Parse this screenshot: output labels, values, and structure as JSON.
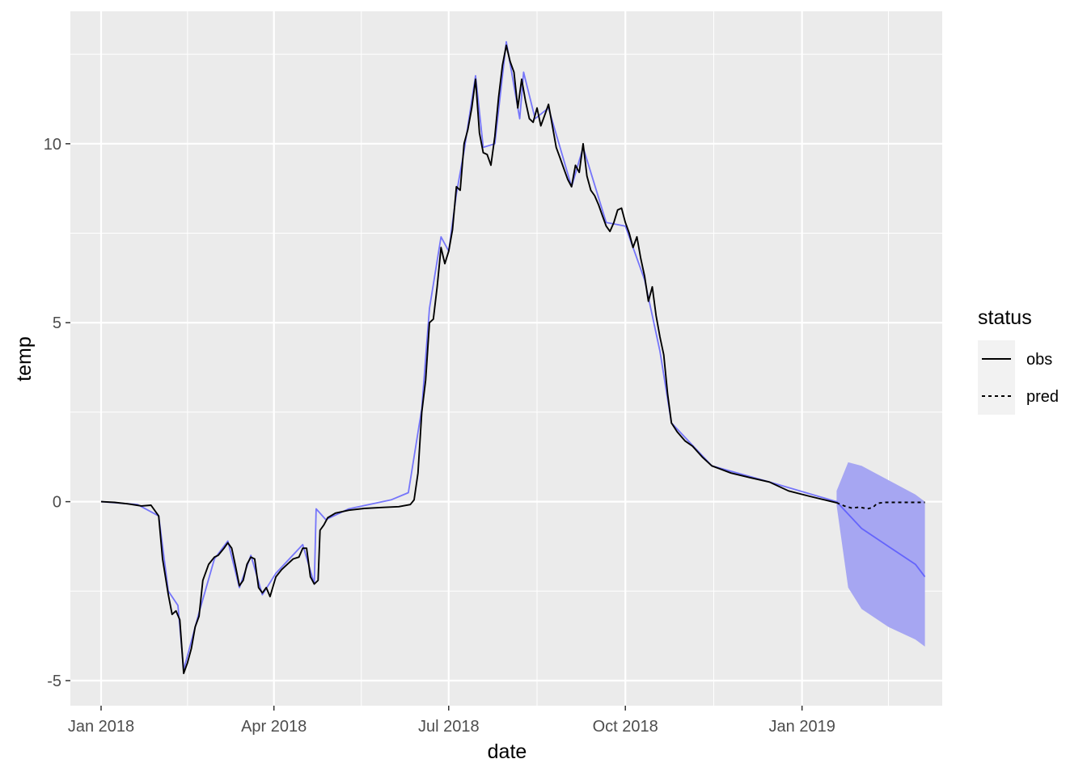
{
  "chart_data": {
    "type": "line",
    "xlabel": "date",
    "ylabel": "temp",
    "x_ticks": [
      {
        "date": "2018-01-01",
        "label": "Jan 2018"
      },
      {
        "date": "2018-04-01",
        "label": "Apr 2018"
      },
      {
        "date": "2018-07-01",
        "label": "Jul 2018"
      },
      {
        "date": "2018-10-01",
        "label": "Oct 2018"
      },
      {
        "date": "2019-01-01",
        "label": "Jan 2019"
      }
    ],
    "y_ticks": [
      -5,
      0,
      5,
      10
    ],
    "xlim": [
      "2017-12-16",
      "2019-03-15"
    ],
    "ylim": [
      -5.7,
      13.7
    ],
    "grid": true,
    "legend": {
      "title": "status",
      "position": "right",
      "items": [
        {
          "label": "obs",
          "linetype": "solid"
        },
        {
          "label": "pred",
          "linetype": "dotted"
        }
      ]
    },
    "colors": {
      "panel": "#ebebeb",
      "grid": "#ffffff",
      "line": "#000000",
      "fit": "#4d4dff",
      "band": "#a6a6f2"
    },
    "series": [
      {
        "name": "obs",
        "points": [
          [
            "2018-01-01",
            0.0
          ],
          [
            "2018-01-08",
            -0.02
          ],
          [
            "2018-01-15",
            -0.06
          ],
          [
            "2018-01-22",
            -0.12
          ],
          [
            "2018-01-27",
            -0.1
          ],
          [
            "2018-01-31",
            -0.4
          ],
          [
            "2018-02-02",
            -1.6
          ],
          [
            "2018-02-05",
            -2.6
          ],
          [
            "2018-02-07",
            -3.15
          ],
          [
            "2018-02-09",
            -3.05
          ],
          [
            "2018-02-11",
            -3.3
          ],
          [
            "2018-02-13",
            -4.8
          ],
          [
            "2018-02-15",
            -4.5
          ],
          [
            "2018-02-17",
            -4.1
          ],
          [
            "2018-02-19",
            -3.5
          ],
          [
            "2018-02-21",
            -3.2
          ],
          [
            "2018-02-23",
            -2.2
          ],
          [
            "2018-02-26",
            -1.75
          ],
          [
            "2018-03-01",
            -1.55
          ],
          [
            "2018-03-03",
            -1.5
          ],
          [
            "2018-03-06",
            -1.3
          ],
          [
            "2018-03-08",
            -1.15
          ],
          [
            "2018-03-10",
            -1.3
          ],
          [
            "2018-03-12",
            -1.8
          ],
          [
            "2018-03-14",
            -2.35
          ],
          [
            "2018-03-16",
            -2.2
          ],
          [
            "2018-03-18",
            -1.75
          ],
          [
            "2018-03-20",
            -1.55
          ],
          [
            "2018-03-22",
            -1.6
          ],
          [
            "2018-03-24",
            -2.4
          ],
          [
            "2018-03-26",
            -2.55
          ],
          [
            "2018-03-28",
            -2.4
          ],
          [
            "2018-03-30",
            -2.65
          ],
          [
            "2018-04-02",
            -2.1
          ],
          [
            "2018-04-05",
            -1.9
          ],
          [
            "2018-04-08",
            -1.75
          ],
          [
            "2018-04-11",
            -1.6
          ],
          [
            "2018-04-14",
            -1.55
          ],
          [
            "2018-04-16",
            -1.3
          ],
          [
            "2018-04-18",
            -1.3
          ],
          [
            "2018-04-20",
            -2.1
          ],
          [
            "2018-04-22",
            -2.3
          ],
          [
            "2018-04-24",
            -2.2
          ],
          [
            "2018-04-25",
            -0.8
          ],
          [
            "2018-04-27",
            -0.65
          ],
          [
            "2018-04-29",
            -0.45
          ],
          [
            "2018-05-03",
            -0.32
          ],
          [
            "2018-05-10",
            -0.24
          ],
          [
            "2018-05-18",
            -0.19
          ],
          [
            "2018-05-28",
            -0.16
          ],
          [
            "2018-06-05",
            -0.14
          ],
          [
            "2018-06-11",
            -0.08
          ],
          [
            "2018-06-13",
            0.05
          ],
          [
            "2018-06-15",
            0.8
          ],
          [
            "2018-06-17",
            2.5
          ],
          [
            "2018-06-19",
            3.4
          ],
          [
            "2018-06-21",
            5.0
          ],
          [
            "2018-06-23",
            5.1
          ],
          [
            "2018-06-25",
            6.0
          ],
          [
            "2018-06-27",
            7.1
          ],
          [
            "2018-06-29",
            6.65
          ],
          [
            "2018-07-01",
            7.0
          ],
          [
            "2018-07-03",
            7.6
          ],
          [
            "2018-07-05",
            8.8
          ],
          [
            "2018-07-07",
            8.7
          ],
          [
            "2018-07-09",
            10.0
          ],
          [
            "2018-07-11",
            10.4
          ],
          [
            "2018-07-13",
            11.0
          ],
          [
            "2018-07-15",
            11.8
          ],
          [
            "2018-07-17",
            10.3
          ],
          [
            "2018-07-19",
            9.75
          ],
          [
            "2018-07-21",
            9.7
          ],
          [
            "2018-07-23",
            9.4
          ],
          [
            "2018-07-25",
            10.2
          ],
          [
            "2018-07-27",
            11.3
          ],
          [
            "2018-07-29",
            12.2
          ],
          [
            "2018-07-31",
            12.75
          ],
          [
            "2018-08-02",
            12.3
          ],
          [
            "2018-08-04",
            12.0
          ],
          [
            "2018-08-06",
            11.0
          ],
          [
            "2018-08-08",
            11.8
          ],
          [
            "2018-08-10",
            11.2
          ],
          [
            "2018-08-12",
            10.7
          ],
          [
            "2018-08-14",
            10.6
          ],
          [
            "2018-08-16",
            11.0
          ],
          [
            "2018-08-18",
            10.5
          ],
          [
            "2018-08-20",
            10.8
          ],
          [
            "2018-08-22",
            11.1
          ],
          [
            "2018-08-24",
            10.5
          ],
          [
            "2018-08-26",
            9.9
          ],
          [
            "2018-08-28",
            9.6
          ],
          [
            "2018-08-30",
            9.3
          ],
          [
            "2018-09-01",
            9.0
          ],
          [
            "2018-09-03",
            8.8
          ],
          [
            "2018-09-05",
            9.4
          ],
          [
            "2018-09-07",
            9.2
          ],
          [
            "2018-09-09",
            10.0
          ],
          [
            "2018-09-11",
            9.1
          ],
          [
            "2018-09-13",
            8.7
          ],
          [
            "2018-09-15",
            8.55
          ],
          [
            "2018-09-17",
            8.3
          ],
          [
            "2018-09-19",
            8.0
          ],
          [
            "2018-09-21",
            7.7
          ],
          [
            "2018-09-23",
            7.55
          ],
          [
            "2018-09-25",
            7.8
          ],
          [
            "2018-09-27",
            8.15
          ],
          [
            "2018-09-29",
            8.2
          ],
          [
            "2018-10-01",
            7.8
          ],
          [
            "2018-10-03",
            7.5
          ],
          [
            "2018-10-05",
            7.1
          ],
          [
            "2018-10-07",
            7.4
          ],
          [
            "2018-10-09",
            6.8
          ],
          [
            "2018-10-11",
            6.3
          ],
          [
            "2018-10-13",
            5.6
          ],
          [
            "2018-10-15",
            6.0
          ],
          [
            "2018-10-17",
            5.2
          ],
          [
            "2018-10-19",
            4.6
          ],
          [
            "2018-10-21",
            4.1
          ],
          [
            "2018-10-23",
            3.0
          ],
          [
            "2018-10-25",
            2.2
          ],
          [
            "2018-10-28",
            1.95
          ],
          [
            "2018-11-01",
            1.7
          ],
          [
            "2018-11-05",
            1.55
          ],
          [
            "2018-11-10",
            1.25
          ],
          [
            "2018-11-15",
            1.0
          ],
          [
            "2018-11-25",
            0.8
          ],
          [
            "2018-12-05",
            0.67
          ],
          [
            "2018-12-15",
            0.55
          ],
          [
            "2018-12-25",
            0.3
          ],
          [
            "2019-01-05",
            0.15
          ],
          [
            "2019-01-15",
            0.02
          ],
          [
            "2019-01-19",
            -0.03
          ]
        ]
      },
      {
        "name": "pred",
        "points": [
          [
            "2019-01-19",
            -0.03
          ],
          [
            "2019-01-23",
            -0.12
          ],
          [
            "2019-01-27",
            -0.18
          ],
          [
            "2019-01-31",
            -0.15
          ],
          [
            "2019-02-04",
            -0.2
          ],
          [
            "2019-02-07",
            -0.16
          ],
          [
            "2019-02-09",
            -0.05
          ],
          [
            "2019-02-13",
            -0.02
          ],
          [
            "2019-02-20",
            -0.02
          ],
          [
            "2019-02-27",
            -0.02
          ],
          [
            "2019-03-06",
            -0.02
          ]
        ]
      },
      {
        "name": "",
        "color": "#4d4dff",
        "points": [
          [
            "2018-01-01",
            0.0
          ],
          [
            "2018-01-20",
            -0.08
          ],
          [
            "2018-01-31",
            -0.4
          ],
          [
            "2018-02-05",
            -2.5
          ],
          [
            "2018-02-10",
            -2.9
          ],
          [
            "2018-02-13",
            -4.7
          ],
          [
            "2018-02-21",
            -3.1
          ],
          [
            "2018-03-01",
            -1.6
          ],
          [
            "2018-03-08",
            -1.1
          ],
          [
            "2018-03-14",
            -2.4
          ],
          [
            "2018-03-20",
            -1.5
          ],
          [
            "2018-03-26",
            -2.6
          ],
          [
            "2018-04-02",
            -2.0
          ],
          [
            "2018-04-16",
            -1.2
          ],
          [
            "2018-04-22",
            -2.3
          ],
          [
            "2018-04-23",
            -0.2
          ],
          [
            "2018-04-28",
            -0.5
          ],
          [
            "2018-05-10",
            -0.2
          ],
          [
            "2018-06-01",
            0.05
          ],
          [
            "2018-06-10",
            0.25
          ],
          [
            "2018-06-17",
            2.6
          ],
          [
            "2018-06-21",
            5.4
          ],
          [
            "2018-06-27",
            7.4
          ],
          [
            "2018-07-01",
            7.0
          ],
          [
            "2018-07-05",
            8.6
          ],
          [
            "2018-07-09",
            9.8
          ],
          [
            "2018-07-15",
            11.9
          ],
          [
            "2018-07-19",
            9.9
          ],
          [
            "2018-07-25",
            10.0
          ],
          [
            "2018-07-31",
            12.85
          ],
          [
            "2018-08-07",
            10.7
          ],
          [
            "2018-08-09",
            12.0
          ],
          [
            "2018-08-15",
            10.7
          ],
          [
            "2018-08-22",
            11.0
          ],
          [
            "2018-09-03",
            8.8
          ],
          [
            "2018-09-09",
            9.9
          ],
          [
            "2018-09-21",
            7.8
          ],
          [
            "2018-10-01",
            7.7
          ],
          [
            "2018-10-11",
            6.2
          ],
          [
            "2018-10-19",
            4.2
          ],
          [
            "2018-10-25",
            2.2
          ],
          [
            "2018-11-15",
            1.0
          ],
          [
            "2018-12-15",
            0.55
          ],
          [
            "2019-01-19",
            0.0
          ],
          [
            "2019-02-01",
            -0.75
          ],
          [
            "2019-02-15",
            -1.25
          ],
          [
            "2019-03-01",
            -1.75
          ],
          [
            "2019-03-06",
            -2.1
          ]
        ]
      }
    ],
    "prediction_band": {
      "color": "#a6a6f2",
      "points": [
        {
          "date": "2019-01-19",
          "lower": -0.1,
          "upper": 0.3
        },
        {
          "date": "2019-01-25",
          "lower": -2.4,
          "upper": 1.1
        },
        {
          "date": "2019-02-01",
          "lower": -3.0,
          "upper": 1.0
        },
        {
          "date": "2019-02-15",
          "lower": -3.5,
          "upper": 0.6
        },
        {
          "date": "2019-03-01",
          "lower": -3.85,
          "upper": 0.2
        },
        {
          "date": "2019-03-06",
          "lower": -4.05,
          "upper": 0.0
        }
      ]
    }
  }
}
